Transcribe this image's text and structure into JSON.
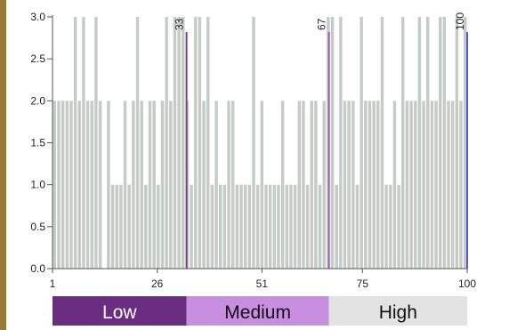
{
  "colors": {
    "left_border": "#9a7a34",
    "bar": "#c5ccc8",
    "axis": "#555555",
    "cut_low": "#7b3f8c",
    "cut_medium": "#9b59b6",
    "cut_high": "#4f5fd0",
    "band_low": "#6a2d82",
    "band_medium": "#c88ee0",
    "band_high": "#e3e3e3",
    "band_low_text": "#ffffff",
    "band_medium_text": "#111111",
    "band_high_text": "#111111"
  },
  "chart_data": {
    "type": "bar",
    "title": "",
    "xlabel": "",
    "ylabel": "",
    "xlim": [
      1,
      100
    ],
    "ylim": [
      0,
      3
    ],
    "grid": false,
    "x": [
      1,
      2,
      3,
      4,
      5,
      6,
      7,
      8,
      9,
      10,
      11,
      12,
      13,
      14,
      15,
      16,
      17,
      18,
      19,
      20,
      21,
      22,
      23,
      24,
      25,
      26,
      27,
      28,
      29,
      30,
      31,
      32,
      33,
      34,
      35,
      36,
      37,
      38,
      39,
      40,
      41,
      42,
      43,
      44,
      45,
      46,
      47,
      48,
      49,
      50,
      51,
      52,
      53,
      54,
      55,
      56,
      57,
      58,
      59,
      60,
      61,
      62,
      63,
      64,
      65,
      66,
      67,
      68,
      69,
      70,
      71,
      72,
      73,
      74,
      75,
      76,
      77,
      78,
      79,
      80,
      81,
      82,
      83,
      84,
      85,
      86,
      87,
      88,
      89,
      90,
      91,
      92,
      93,
      94,
      95,
      96,
      97,
      98,
      99,
      100
    ],
    "values": [
      2,
      2,
      2,
      2,
      2,
      3,
      2,
      3,
      2,
      2,
      3,
      2,
      0,
      2,
      1,
      1,
      1,
      2,
      1,
      2,
      3,
      2,
      1,
      2,
      2,
      1,
      2,
      3,
      2,
      3,
      3,
      3,
      2,
      1,
      3,
      3,
      2,
      3,
      1,
      2,
      1,
      1,
      2,
      2,
      1,
      1,
      1,
      1,
      3,
      1,
      2,
      1,
      1,
      1,
      1,
      2,
      1,
      1,
      1,
      2,
      2,
      1,
      2,
      2,
      1,
      2,
      3,
      3,
      1,
      3,
      2,
      2,
      2,
      1,
      3,
      2,
      2,
      2,
      2,
      3,
      1,
      1,
      2,
      1,
      3,
      2,
      2,
      2,
      3,
      2,
      3,
      2,
      2,
      3,
      3,
      2,
      2,
      3,
      2,
      3
    ],
    "xticks": [
      "1",
      "26",
      "51",
      "75",
      "100"
    ],
    "xtick_values": [
      1,
      26,
      51,
      75,
      100
    ],
    "yticks": [
      "0.0",
      "0.5",
      "1.0",
      "1.5",
      "2.0",
      "2.5",
      "3.0"
    ],
    "ytick_values": [
      0,
      0.5,
      1,
      1.5,
      2,
      2.5,
      3
    ],
    "cutoffs": [
      {
        "x": 33,
        "label": "33",
        "color_key": "cut_low"
      },
      {
        "x": 67,
        "label": "67",
        "color_key": "cut_medium"
      },
      {
        "x": 100,
        "label": "100",
        "color_key": "cut_high"
      }
    ],
    "bands": [
      {
        "label": "Low",
        "from": 1,
        "to": 33,
        "color_key": "band_low",
        "text_key": "band_low_text"
      },
      {
        "label": "Medium",
        "from": 33,
        "to": 67,
        "color_key": "band_medium",
        "text_key": "band_medium_text"
      },
      {
        "label": "High",
        "from": 67,
        "to": 100,
        "color_key": "band_high",
        "text_key": "band_high_text"
      }
    ]
  }
}
